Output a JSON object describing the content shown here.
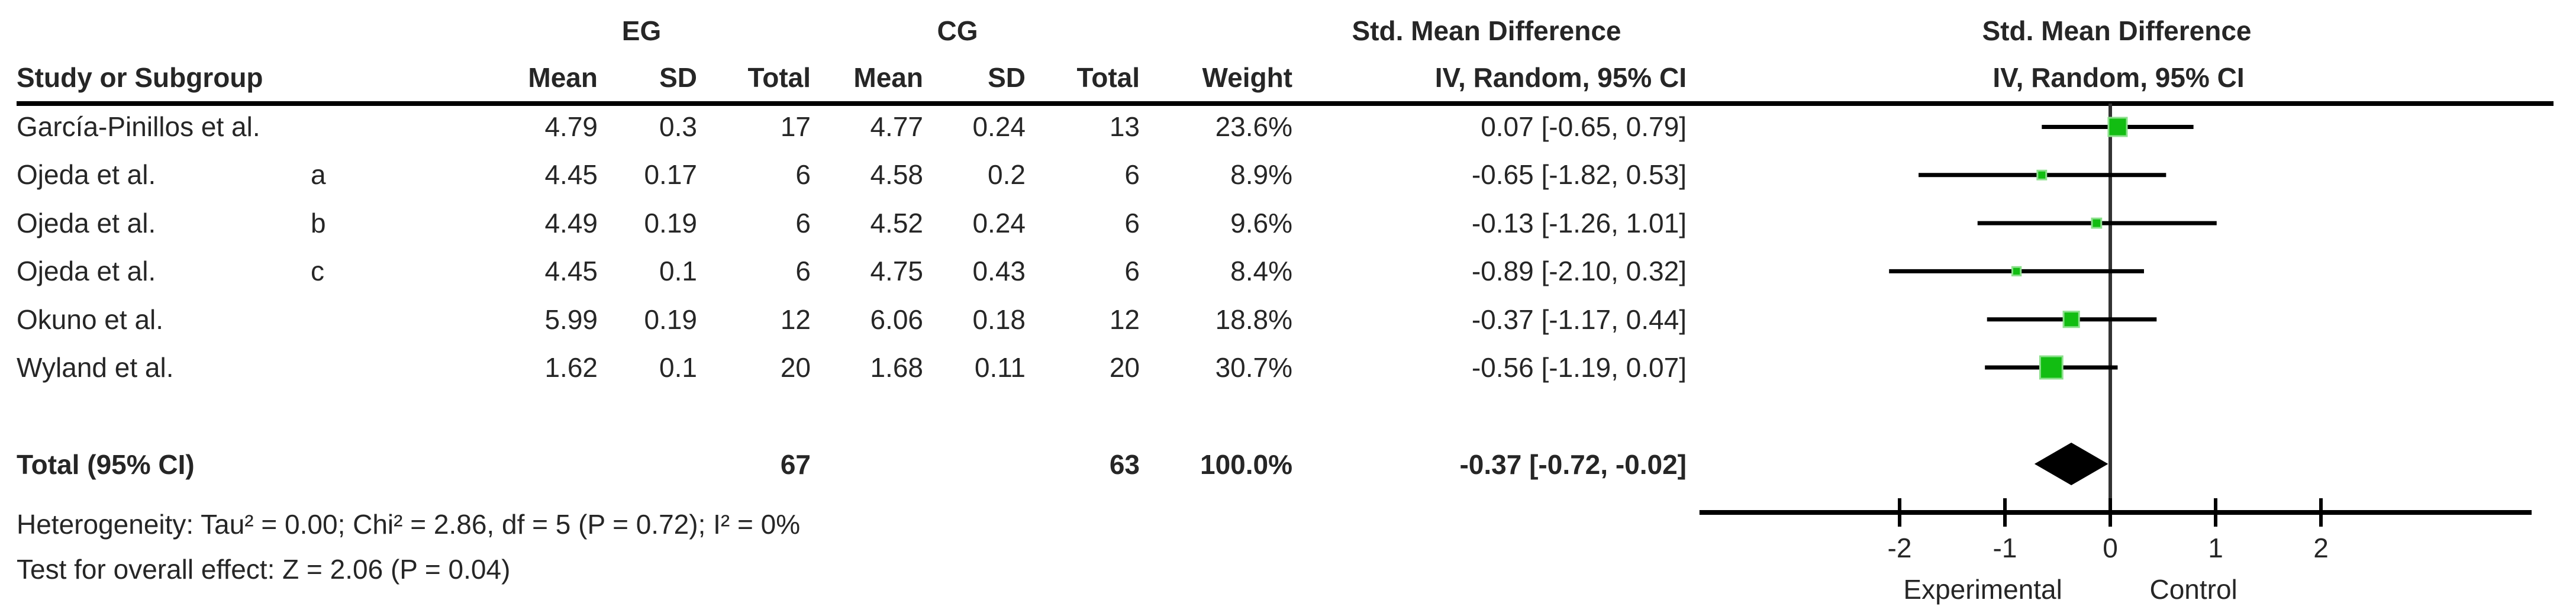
{
  "table": {
    "header": {
      "group_experimental": "EG",
      "group_control": "CG",
      "smd_title": "Std. Mean Difference",
      "col_study": "Study or Subgroup",
      "col_mean": "Mean",
      "col_sd": "SD",
      "col_total": "Total",
      "col_weight": "Weight",
      "col_iv": "IV, Random, 95% CI"
    },
    "rows": [
      {
        "study": "García-Pinillos et al.",
        "sub": "",
        "eg_mean": "4.79",
        "eg_sd": "0.3",
        "eg_total": "17",
        "cg_mean": "4.77",
        "cg_sd": "0.24",
        "cg_total": "13",
        "weight": "23.6%",
        "ci": "0.07 [-0.65, 0.79]"
      },
      {
        "study": "Ojeda et al.",
        "sub": "a",
        "eg_mean": "4.45",
        "eg_sd": "0.17",
        "eg_total": "6",
        "cg_mean": "4.58",
        "cg_sd": "0.2",
        "cg_total": "6",
        "weight": "8.9%",
        "ci": "-0.65 [-1.82, 0.53]"
      },
      {
        "study": "Ojeda et al.",
        "sub": "b",
        "eg_mean": "4.49",
        "eg_sd": "0.19",
        "eg_total": "6",
        "cg_mean": "4.52",
        "cg_sd": "0.24",
        "cg_total": "6",
        "weight": "9.6%",
        "ci": "-0.13 [-1.26, 1.01]"
      },
      {
        "study": "Ojeda et al.",
        "sub": "c",
        "eg_mean": "4.45",
        "eg_sd": "0.1",
        "eg_total": "6",
        "cg_mean": "4.75",
        "cg_sd": "0.43",
        "cg_total": "6",
        "weight": "8.4%",
        "ci": "-0.89 [-2.10, 0.32]"
      },
      {
        "study": "Okuno et al.",
        "sub": "",
        "eg_mean": "5.99",
        "eg_sd": "0.19",
        "eg_total": "12",
        "cg_mean": "6.06",
        "cg_sd": "0.18",
        "cg_total": "12",
        "weight": "18.8%",
        "ci": "-0.37 [-1.17, 0.44]"
      },
      {
        "study": "Wyland et al.",
        "sub": "",
        "eg_mean": "1.62",
        "eg_sd": "0.1",
        "eg_total": "20",
        "cg_mean": "1.68",
        "cg_sd": "0.11",
        "cg_total": "20",
        "weight": "30.7%",
        "ci": "-0.56 [-1.19, 0.07]"
      }
    ],
    "total_row": {
      "label": "Total (95% CI)",
      "eg_total": "67",
      "cg_total": "63",
      "weight": "100.0%",
      "ci": "-0.37 [-0.72, -0.02]"
    },
    "footer": {
      "heterogeneity": "Heterogeneity: Tau² = 0.00; Chi² = 2.86, df = 5 (P = 0.72); I² = 0%",
      "overall_effect": "Test for overall effect: Z = 2.06 (P = 0.04)"
    }
  },
  "chart_data": {
    "type": "forest",
    "title": "Std. Mean Difference",
    "subtitle": "IV, Random, 95% CI",
    "studies": [
      "García-Pinillos et al.",
      "Ojeda et al. a",
      "Ojeda et al. b",
      "Ojeda et al. c",
      "Okuno et al.",
      "Wyland et al."
    ],
    "estimates": [
      0.07,
      -0.65,
      -0.13,
      -0.89,
      -0.37,
      -0.56
    ],
    "ci_low": [
      -0.65,
      -1.82,
      -1.26,
      -2.1,
      -1.17,
      -1.19
    ],
    "ci_high": [
      0.79,
      0.53,
      1.01,
      0.32,
      0.44,
      0.07
    ],
    "weights_pct": [
      23.6,
      8.9,
      9.6,
      8.4,
      18.8,
      30.7
    ],
    "overall": {
      "label": "Total (95% CI)",
      "estimate": -0.37,
      "ci_low": -0.72,
      "ci_high": -0.02
    },
    "axis": {
      "ticks": [
        -2,
        -1,
        0,
        1,
        2
      ],
      "line_range": [
        -3.9,
        4.0
      ],
      "group_labels": [
        {
          "text": "Experimental",
          "at": -1.21
        },
        {
          "text": "Control",
          "at": 0.79
        }
      ]
    },
    "colors": {
      "square": "#12BD12",
      "square_border": "#8CE08C",
      "ci_line": "#000000",
      "zero_line": "#333333",
      "axis": "#000000",
      "diamond": "#000000",
      "text": "#262626"
    }
  }
}
